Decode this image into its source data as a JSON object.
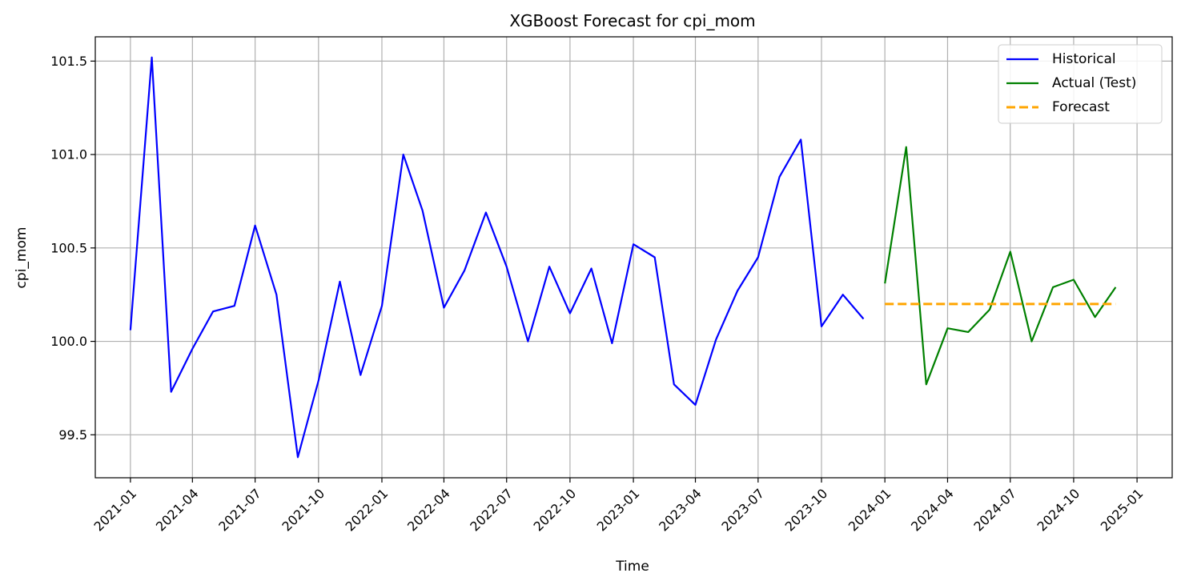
{
  "chart_data": {
    "type": "line",
    "title": "XGBoost Forecast for cpi_mom",
    "xlabel": "Time",
    "ylabel": "cpi_mom",
    "x_ticks": [
      "2021-01",
      "2021-04",
      "2021-07",
      "2021-10",
      "2022-01",
      "2022-04",
      "2022-07",
      "2022-10",
      "2023-01",
      "2023-04",
      "2023-07",
      "2023-10",
      "2024-01",
      "2024-04",
      "2024-07",
      "2024-10",
      "2025-01"
    ],
    "y_ticks": [
      "99.5",
      "100.0",
      "100.5",
      "101.0",
      "101.5"
    ],
    "xlim": [
      "2020-11-11",
      "2025-02-21"
    ],
    "ylim": [
      99.27,
      101.63
    ],
    "grid": true,
    "legend_position": "top-right",
    "series": [
      {
        "name": "Historical",
        "color": "#0000ff",
        "style": "solid",
        "x": [
          "2021-01",
          "2021-02",
          "2021-03",
          "2021-04",
          "2021-05",
          "2021-06",
          "2021-07",
          "2021-08",
          "2021-09",
          "2021-10",
          "2021-11",
          "2021-12",
          "2022-01",
          "2022-02",
          "2022-03",
          "2022-04",
          "2022-05",
          "2022-06",
          "2022-07",
          "2022-08",
          "2022-09",
          "2022-10",
          "2022-11",
          "2022-12",
          "2023-01",
          "2023-02",
          "2023-03",
          "2023-04",
          "2023-05",
          "2023-06",
          "2023-07",
          "2023-08",
          "2023-09",
          "2023-10",
          "2023-11",
          "2023-12"
        ],
        "values": [
          100.06,
          101.52,
          99.73,
          99.96,
          100.16,
          100.19,
          100.62,
          100.25,
          99.38,
          99.79,
          100.32,
          99.82,
          100.19,
          101.0,
          100.7,
          100.18,
          100.38,
          100.69,
          100.4,
          100.0,
          100.4,
          100.15,
          100.39,
          99.99,
          100.52,
          100.45,
          99.77,
          99.66,
          100.01,
          100.27,
          100.45,
          100.88,
          101.08,
          100.08,
          100.25,
          100.12
        ]
      },
      {
        "name": "Actual (Test)",
        "color": "#008000",
        "style": "solid",
        "x": [
          "2024-01",
          "2024-02",
          "2024-03",
          "2024-04",
          "2024-05",
          "2024-06",
          "2024-07",
          "2024-08",
          "2024-09",
          "2024-10",
          "2024-11",
          "2024-12"
        ],
        "values": [
          100.31,
          101.04,
          99.77,
          100.07,
          100.05,
          100.17,
          100.48,
          100.0,
          100.29,
          100.33,
          100.13,
          100.29
        ]
      },
      {
        "name": "Forecast",
        "color": "#ffa500",
        "style": "dashed",
        "x": [
          "2024-01",
          "2024-02",
          "2024-03",
          "2024-04",
          "2024-05",
          "2024-06",
          "2024-07",
          "2024-08",
          "2024-09",
          "2024-10",
          "2024-11",
          "2024-12"
        ],
        "values": [
          100.2,
          100.2,
          100.2,
          100.2,
          100.2,
          100.2,
          100.2,
          100.2,
          100.2,
          100.2,
          100.2,
          100.2
        ]
      }
    ]
  }
}
